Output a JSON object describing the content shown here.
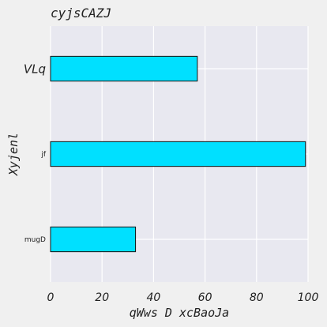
{
  "chart_data": {
    "type": "bar",
    "orientation": "horizontal",
    "title": "cyjsCAZJ",
    "xlabel": "qWws D xcBaoJa",
    "ylabel": "Xyjenl",
    "categories": [
      "VLq",
      "jf",
      "mugD"
    ],
    "values": [
      57,
      99,
      33
    ],
    "xlim": [
      0,
      100
    ],
    "xticks": [
      0,
      20,
      40,
      60,
      80,
      100
    ],
    "grid": true,
    "legend": "none",
    "colors": {
      "bar_fill": "#00e0ff",
      "bar_edge": "#111111",
      "plot_background": "#e8e8f0",
      "figure_background": "#f0f0f0",
      "grid": "#ffffff"
    }
  }
}
